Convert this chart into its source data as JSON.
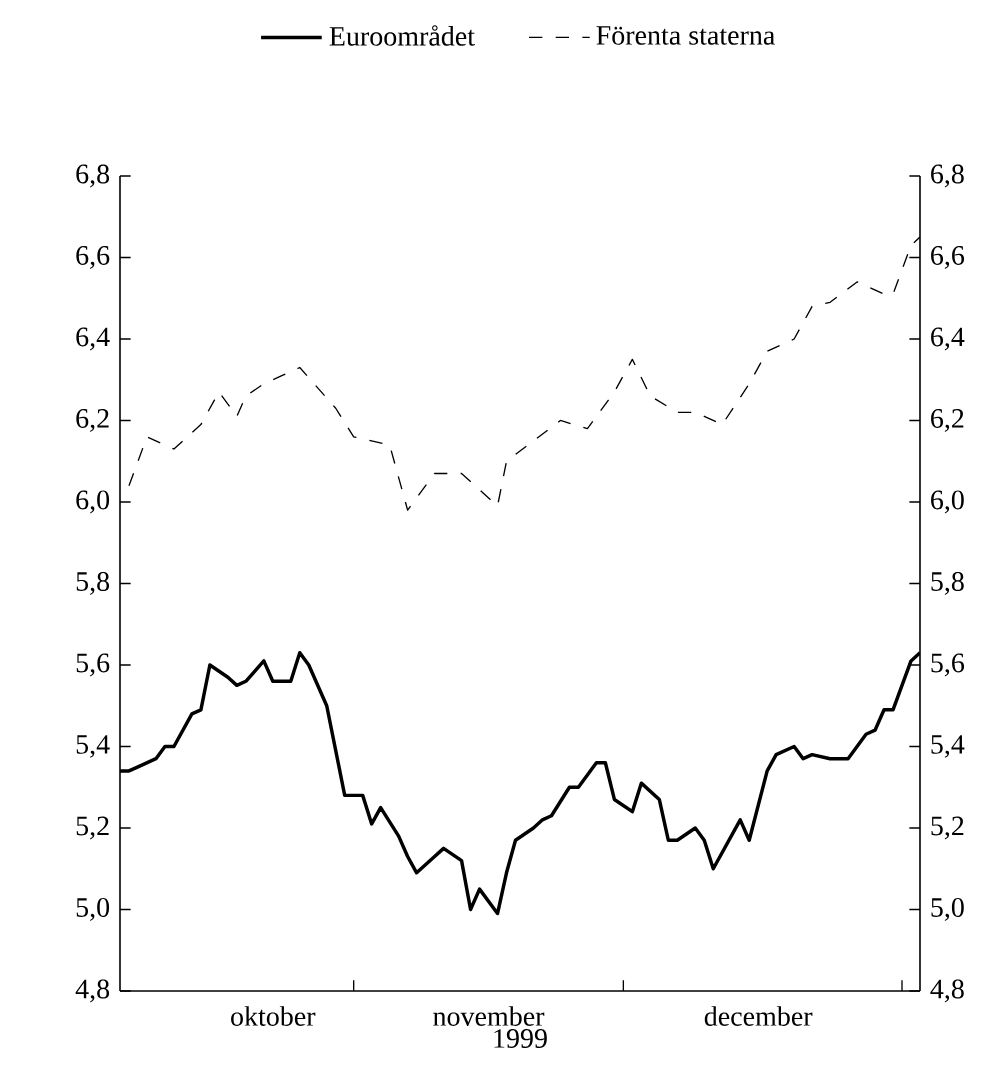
{
  "chart_data": {
    "type": "line",
    "xlabel": "1999",
    "xlim": [
      "1999-10-06",
      "2000-01-03"
    ],
    "xticks": [
      {
        "value": "1999-11-01",
        "label": null
      },
      {
        "value": "1999-12-01",
        "label": null
      },
      {
        "value": "2000-01-01",
        "label": null
      },
      {
        "value": "1999-10-23",
        "label": "oktober"
      },
      {
        "value": "1999-11-16",
        "label": "november"
      },
      {
        "value": "1999-12-16",
        "label": "december"
      }
    ],
    "ylim": [
      4.8,
      6.8
    ],
    "yticks": [
      {
        "value": 4.8,
        "label": "4,8"
      },
      {
        "value": 5.0,
        "label": "5,0"
      },
      {
        "value": 5.2,
        "label": "5,2"
      },
      {
        "value": 5.4,
        "label": "5,4"
      },
      {
        "value": 5.6,
        "label": "5,6"
      },
      {
        "value": 5.8,
        "label": "5,8"
      },
      {
        "value": 6.0,
        "label": "6,0"
      },
      {
        "value": 6.2,
        "label": "6,2"
      },
      {
        "value": 6.4,
        "label": "6,4"
      },
      {
        "value": 6.6,
        "label": "6,6"
      },
      {
        "value": 6.8,
        "label": "6,8"
      }
    ],
    "y2lim": [
      4.8,
      6.8
    ],
    "y2ticks": [
      {
        "value": 4.8,
        "label": "4,8"
      },
      {
        "value": 5.0,
        "label": "5,0"
      },
      {
        "value": 5.2,
        "label": "5,2"
      },
      {
        "value": 5.4,
        "label": "5,4"
      },
      {
        "value": 5.6,
        "label": "5,6"
      },
      {
        "value": 5.8,
        "label": "5,8"
      },
      {
        "value": 6.0,
        "label": "6,0"
      },
      {
        "value": 6.2,
        "label": "6,2"
      },
      {
        "value": 6.4,
        "label": "6,4"
      },
      {
        "value": 6.6,
        "label": "6,6"
      },
      {
        "value": 6.8,
        "label": "6,8"
      }
    ],
    "legend": "top",
    "marker": "none",
    "series": [
      {
        "name": "Euroområdet",
        "color": "#000000",
        "line_style": "solid",
        "x": [
          "1999-10-06",
          "1999-10-07",
          "1999-10-08",
          "1999-10-10",
          "1999-10-11",
          "1999-10-12",
          "1999-10-14",
          "1999-10-15",
          "1999-10-16",
          "1999-10-18",
          "1999-10-19",
          "1999-10-20",
          "1999-10-22",
          "1999-10-23",
          "1999-10-25",
          "1999-10-26",
          "1999-10-27",
          "1999-10-29",
          "1999-10-30",
          "1999-10-31",
          "1999-11-02",
          "1999-11-03",
          "1999-11-04",
          "1999-11-06",
          "1999-11-07",
          "1999-11-08",
          "1999-11-10",
          "1999-11-11",
          "1999-11-13",
          "1999-11-14",
          "1999-11-15",
          "1999-11-17",
          "1999-11-18",
          "1999-11-19",
          "1999-11-21",
          "1999-11-22",
          "1999-11-23",
          "1999-11-25",
          "1999-11-26",
          "1999-11-28",
          "1999-11-29",
          "1999-11-30",
          "1999-12-02",
          "1999-12-03",
          "1999-12-05",
          "1999-12-06",
          "1999-12-07",
          "1999-12-09",
          "1999-12-10",
          "1999-12-11",
          "1999-12-14",
          "1999-12-15",
          "1999-12-17",
          "1999-12-18",
          "1999-12-20",
          "1999-12-21",
          "1999-12-22",
          "1999-12-24",
          "1999-12-26",
          "1999-12-28",
          "1999-12-29",
          "1999-12-30",
          "1999-12-31",
          "2000-01-02",
          "2000-01-03"
        ],
        "values": [
          5.34,
          5.34,
          5.35,
          5.37,
          5.4,
          5.4,
          5.48,
          5.49,
          5.6,
          5.57,
          5.55,
          5.56,
          5.61,
          5.56,
          5.56,
          5.63,
          5.6,
          5.5,
          5.39,
          5.28,
          5.28,
          5.21,
          5.25,
          5.18,
          5.13,
          5.09,
          5.13,
          5.15,
          5.12,
          5.0,
          5.05,
          4.99,
          5.09,
          5.17,
          5.2,
          5.22,
          5.23,
          5.3,
          5.3,
          5.36,
          5.36,
          5.27,
          5.24,
          5.31,
          5.27,
          5.17,
          5.17,
          5.2,
          5.17,
          5.1,
          5.22,
          5.17,
          5.34,
          5.38,
          5.4,
          5.37,
          5.38,
          5.37,
          5.37,
          5.43,
          5.44,
          5.49,
          5.49,
          5.61,
          5.63
        ]
      },
      {
        "name": "Förenta staterna",
        "color": "#000000",
        "line_style": "dashed",
        "x": [
          "1999-10-07",
          "1999-10-09",
          "1999-10-12",
          "1999-10-15",
          "1999-10-17",
          "1999-10-19",
          "1999-10-20",
          "1999-10-22",
          "1999-10-24",
          "1999-10-26",
          "1999-10-30",
          "1999-11-01",
          "1999-11-05",
          "1999-11-07",
          "1999-11-10",
          "1999-11-13",
          "1999-11-17",
          "1999-11-18",
          "1999-11-21",
          "1999-11-24",
          "1999-11-27",
          "1999-11-30",
          "1999-12-02",
          "1999-12-04",
          "1999-12-07",
          "1999-12-09",
          "1999-12-12",
          "1999-12-15",
          "1999-12-17",
          "1999-12-20",
          "1999-12-22",
          "1999-12-24",
          "1999-12-27",
          "1999-12-30",
          "1999-12-31",
          "2000-01-02",
          "2000-01-03"
        ],
        "values": [
          6.04,
          6.16,
          6.13,
          6.19,
          6.27,
          6.21,
          6.26,
          6.29,
          6.31,
          6.33,
          6.23,
          6.16,
          6.14,
          5.98,
          6.07,
          6.07,
          5.99,
          6.1,
          6.15,
          6.2,
          6.18,
          6.27,
          6.35,
          6.26,
          6.22,
          6.22,
          6.19,
          6.29,
          6.37,
          6.4,
          6.48,
          6.49,
          6.54,
          6.51,
          6.51,
          6.63,
          6.65
        ]
      }
    ]
  }
}
